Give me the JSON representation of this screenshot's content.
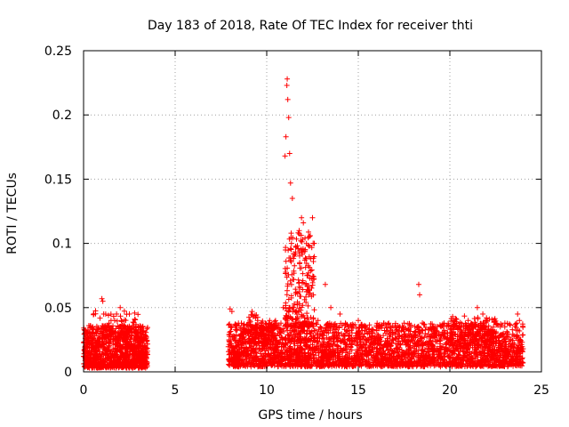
{
  "chart_data": {
    "type": "scatter",
    "title": "Day 183 of 2018, Rate Of TEC Index for receiver thti",
    "xlabel": "GPS time / hours",
    "ylabel": "ROTI / TECUs",
    "xlim": [
      0,
      25
    ],
    "ylim": [
      0,
      0.25
    ],
    "xticks": [
      0,
      5,
      10,
      15,
      20,
      25
    ],
    "xtick_labels": [
      "0",
      "5",
      "10",
      "15",
      "20",
      "25"
    ],
    "yticks": [
      0,
      0.05,
      0.1,
      0.15,
      0.2,
      0.25
    ],
    "ytick_labels": [
      "0",
      "0.05",
      "0.1",
      "0.15",
      "0.2",
      "0.25"
    ],
    "grid": true,
    "marker": "+",
    "color": "#ff0000",
    "series": [
      {
        "name": "ROTI",
        "points": [
          [
            0.0,
            0.012
          ],
          [
            0.1,
            0.02
          ],
          [
            0.2,
            0.03
          ],
          [
            0.3,
            0.015
          ],
          [
            0.5,
            0.025
          ],
          [
            0.8,
            0.02
          ],
          [
            1.0,
            0.057
          ],
          [
            1.05,
            0.055
          ],
          [
            1.1,
            0.045
          ],
          [
            1.3,
            0.018
          ],
          [
            1.5,
            0.04
          ],
          [
            1.7,
            0.04
          ],
          [
            2.0,
            0.05
          ],
          [
            2.1,
            0.03
          ],
          [
            2.5,
            0.045
          ],
          [
            2.7,
            0.02
          ],
          [
            3.0,
            0.03
          ],
          [
            3.2,
            0.012
          ],
          [
            3.4,
            0.008
          ],
          [
            8.0,
            0.049
          ],
          [
            8.1,
            0.047
          ],
          [
            8.3,
            0.012
          ],
          [
            8.5,
            0.015
          ],
          [
            8.8,
            0.025
          ],
          [
            9.2,
            0.047
          ],
          [
            9.5,
            0.04
          ],
          [
            9.8,
            0.03
          ],
          [
            10.0,
            0.035
          ],
          [
            10.3,
            0.03
          ],
          [
            10.6,
            0.035
          ],
          [
            10.9,
            0.05
          ],
          [
            11.0,
            0.168
          ],
          [
            11.05,
            0.183
          ],
          [
            11.1,
            0.223
          ],
          [
            11.12,
            0.228
          ],
          [
            11.15,
            0.212
          ],
          [
            11.2,
            0.198
          ],
          [
            11.25,
            0.17
          ],
          [
            11.3,
            0.147
          ],
          [
            11.35,
            0.1
          ],
          [
            11.4,
            0.135
          ],
          [
            11.5,
            0.09
          ],
          [
            11.6,
            0.062
          ],
          [
            11.7,
            0.096
          ],
          [
            11.8,
            0.085
          ],
          [
            11.9,
            0.12
          ],
          [
            12.0,
            0.116
          ],
          [
            12.1,
            0.095
          ],
          [
            12.2,
            0.075
          ],
          [
            12.3,
            0.06
          ],
          [
            12.5,
            0.12
          ],
          [
            12.6,
            0.1
          ],
          [
            12.8,
            0.04
          ],
          [
            13.2,
            0.068
          ],
          [
            13.5,
            0.05
          ],
          [
            14.0,
            0.045
          ],
          [
            14.5,
            0.035
          ],
          [
            15.0,
            0.04
          ],
          [
            15.5,
            0.03
          ],
          [
            16.0,
            0.035
          ],
          [
            16.5,
            0.03
          ],
          [
            17.0,
            0.035
          ],
          [
            17.5,
            0.025
          ],
          [
            18.0,
            0.02
          ],
          [
            18.3,
            0.068
          ],
          [
            18.35,
            0.06
          ],
          [
            18.5,
            0.038
          ],
          [
            19.0,
            0.033
          ],
          [
            19.5,
            0.025
          ],
          [
            20.0,
            0.03
          ],
          [
            20.5,
            0.035
          ],
          [
            21.0,
            0.04
          ],
          [
            21.5,
            0.05
          ],
          [
            21.8,
            0.045
          ],
          [
            22.0,
            0.042
          ],
          [
            22.5,
            0.03
          ],
          [
            23.0,
            0.035
          ],
          [
            23.5,
            0.028
          ],
          [
            23.7,
            0.045
          ],
          [
            23.8,
            0.04
          ],
          [
            24.0,
            0.018
          ]
        ],
        "bands": [
          {
            "x": [
              0.0,
              3.5
            ],
            "y": [
              0.003,
              0.036
            ],
            "count": 1100
          },
          {
            "x": [
              7.9,
              24.0
            ],
            "y": [
              0.004,
              0.038
            ],
            "count": 3200
          },
          {
            "x": [
              11.0,
              12.6
            ],
            "y": [
              0.035,
              0.11
            ],
            "count": 220
          },
          {
            "x": [
              0.5,
              3.2
            ],
            "y": [
              0.025,
              0.048
            ],
            "count": 80
          },
          {
            "x": [
              20.0,
              22.5
            ],
            "y": [
              0.02,
              0.045
            ],
            "count": 160
          },
          {
            "x": [
              9.0,
              10.5
            ],
            "y": [
              0.02,
              0.045
            ],
            "count": 120
          }
        ]
      }
    ]
  }
}
